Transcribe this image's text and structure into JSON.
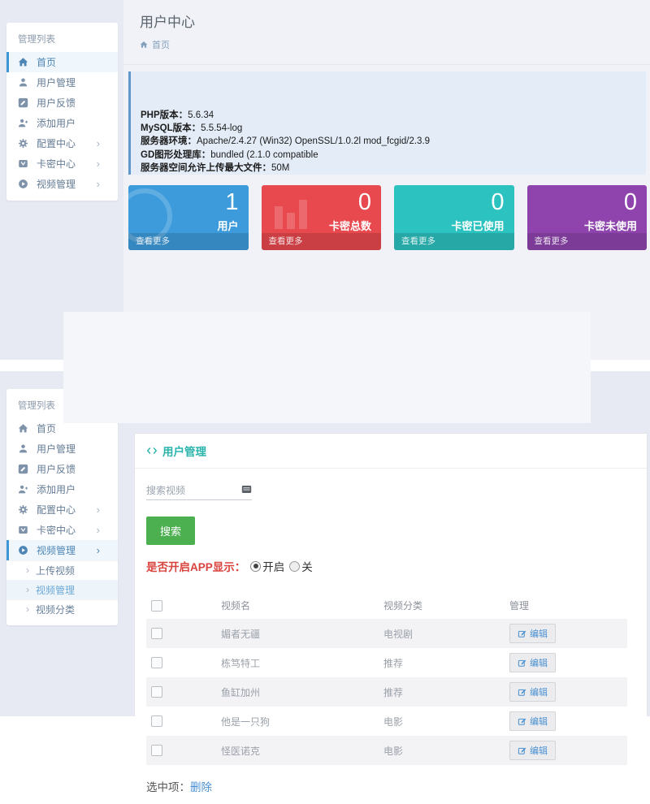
{
  "page": {
    "title": "用户中心",
    "breadcrumb_home": "首页"
  },
  "sidebar": {
    "title": "管理列表",
    "items": [
      {
        "label": "首页"
      },
      {
        "label": "用户管理"
      },
      {
        "label": "用户反馈"
      },
      {
        "label": "添加用户"
      },
      {
        "label": "配置中心"
      },
      {
        "label": "卡密中心"
      },
      {
        "label": "视频管理"
      }
    ],
    "submenu": [
      {
        "label": "上传视频"
      },
      {
        "label": "视频管理"
      },
      {
        "label": "视频分类"
      }
    ]
  },
  "server_info": {
    "lines": [
      {
        "label": "PHP版本：",
        "value": "5.6.34"
      },
      {
        "label": "MySQL版本：",
        "value": "5.5.54-log"
      },
      {
        "label": "服务器环境：",
        "value": "Apache/2.4.27 (Win32) OpenSSL/1.0.2l mod_fcgid/2.3.9"
      },
      {
        "label": "GD图形处理库：",
        "value": "bundled (2.1.0 compatible"
      },
      {
        "label": "服务器空间允许上传最大文件：",
        "value": "50M"
      }
    ]
  },
  "stats": [
    {
      "value": "1",
      "label": "用户",
      "more": "查看更多",
      "color": "#3d9bdc",
      "watermark": "circle"
    },
    {
      "value": "0",
      "label": "卡密总数",
      "more": "查看更多",
      "color": "#e8494f",
      "watermark": "bars"
    },
    {
      "value": "0",
      "label": "卡密已使用",
      "more": "查看更多",
      "color": "#2cc2bf",
      "watermark": "none"
    },
    {
      "value": "0",
      "label": "卡密未使用",
      "more": "查看更多",
      "color": "#8f44ad",
      "watermark": "none"
    }
  ],
  "video_panel": {
    "title": "用户管理",
    "search_placeholder": "搜索视频",
    "search_button": "搜索",
    "app_display_label": "是否开启APP显示：",
    "radio_on": "开启",
    "radio_off": "关",
    "table": {
      "headers": [
        "视频名",
        "视频分类",
        "管理"
      ],
      "edit_label": "编辑",
      "rows": [
        {
          "name": "媚者无疆",
          "category": "电视剧"
        },
        {
          "name": "栋笃特工",
          "category": "推荐"
        },
        {
          "name": "鱼缸加州",
          "category": "推荐"
        },
        {
          "name": "他是一只狗",
          "category": "电影"
        },
        {
          "name": "怪医诺克",
          "category": "电影"
        }
      ]
    },
    "selected_label": "选中项：",
    "delete_label": "删除"
  }
}
